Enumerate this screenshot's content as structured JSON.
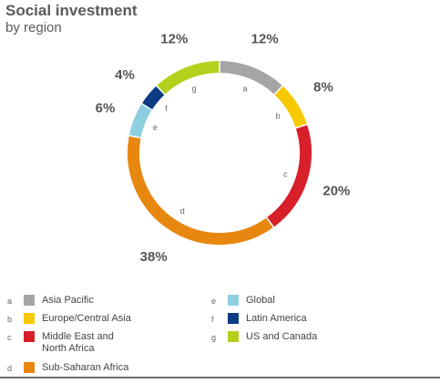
{
  "chart_data": {
    "type": "pie",
    "title": "Social investment",
    "subtitle": "by region",
    "slices": [
      {
        "letter": "a",
        "label": "Asia Pacific",
        "value": 12,
        "pct_label": "12%",
        "color": "#a5a5a5"
      },
      {
        "letter": "b",
        "label": "Europe/Central Asia",
        "value": 8,
        "pct_label": "8%",
        "color": "#f6c900"
      },
      {
        "letter": "c",
        "label": "Middle East and North Africa",
        "value": 20,
        "pct_label": "20%",
        "color": "#d7202a"
      },
      {
        "letter": "d",
        "label": "Sub-Saharan Africa",
        "value": 38,
        "pct_label": "38%",
        "color": "#e8870f"
      },
      {
        "letter": "e",
        "label": "Global",
        "value": 6,
        "pct_label": "6%",
        "color": "#8dcfe0"
      },
      {
        "letter": "f",
        "label": "Latin America",
        "value": 4,
        "pct_label": "4%",
        "color": "#0b3c83"
      },
      {
        "letter": "g",
        "label": "US and Canada",
        "value": 12,
        "pct_label": "12%",
        "color": "#b5cf1d"
      }
    ],
    "legend_placement": "bottom"
  }
}
